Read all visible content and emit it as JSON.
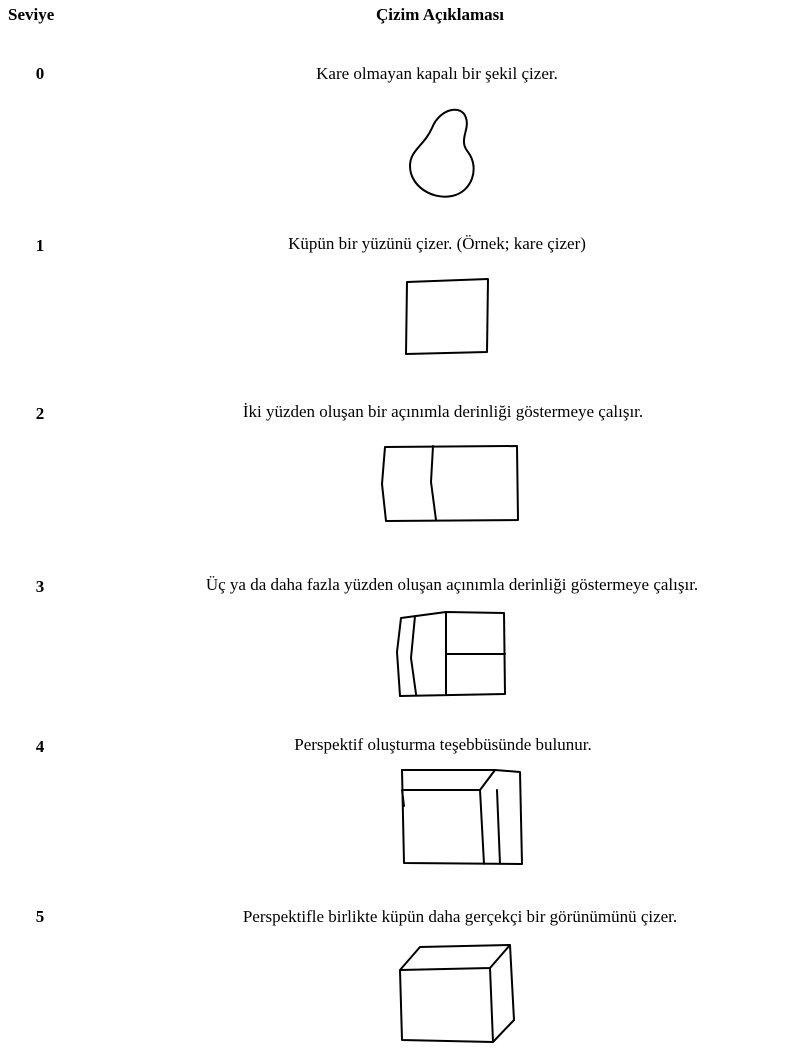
{
  "header": {
    "level": "Seviye",
    "description": "Çizim Açıklaması"
  },
  "rows": [
    {
      "level": "0",
      "description": "Kare olmayan kapalı bir şekil çizer."
    },
    {
      "level": "1",
      "description": "Küpün bir yüzünü çizer. (Örnek; kare çizer)"
    },
    {
      "level": "2",
      "description": "İki yüzden oluşan bir açınımla derinliği göstermeye çalışır."
    },
    {
      "level": "3",
      "description": "Üç ya da daha fazla yüzden oluşan açınımla derinliği göstermeye çalışır."
    },
    {
      "level": "4",
      "description": "Perspektif oluşturma teşebbüsünde bulunur."
    },
    {
      "level": "5",
      "description": "Perspektifle birlikte küpün daha gerçekçi bir görünümünü çizer."
    }
  ]
}
